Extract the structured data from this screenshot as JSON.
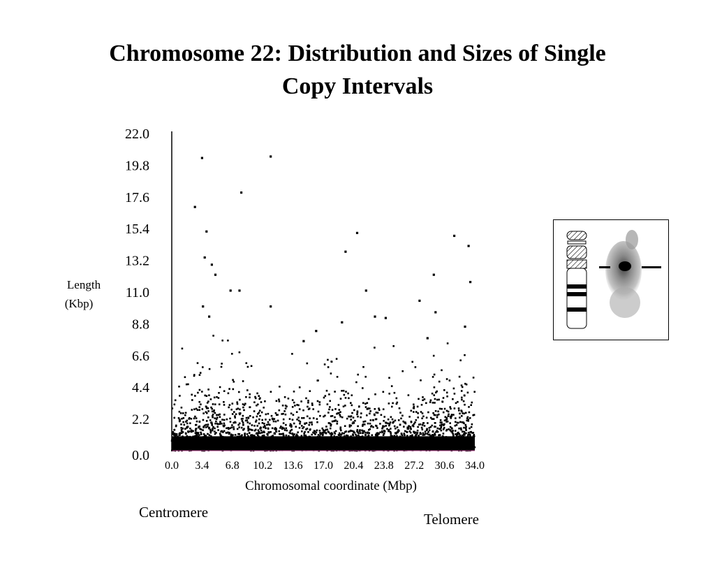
{
  "title": {
    "line1": "Chromosome 22:   Distribution and Sizes of Single",
    "line2": "Copy Intervals"
  },
  "footer": {
    "centromere": "Centromere",
    "telomere": "Telomere"
  },
  "colors": {
    "points": "#000000",
    "axis": "#000000",
    "baseline": "#c0509a"
  },
  "icons": [
    "chromosome-ideogram-icon",
    "fish-hybridization-image"
  ],
  "chart_data": {
    "type": "scatter",
    "xlabel": "Chromosomal coordinate (Mbp)",
    "ylabel_lines": [
      "Length",
      "(Kbp)"
    ],
    "xlim": [
      0,
      34
    ],
    "ylim": [
      0,
      22
    ],
    "x_ticks": [
      "0.0",
      "3.4",
      "6.8",
      "10.2",
      "13.6",
      "17.0",
      "20.4",
      "23.8",
      "27.2",
      "30.6",
      "34.0"
    ],
    "y_ticks": [
      "0.0",
      "2.2",
      "4.4",
      "6.6",
      "8.8",
      "11.0",
      "13.2",
      "15.4",
      "17.6",
      "19.8",
      "22.0"
    ],
    "grid": false,
    "legend": "none",
    "notable_points": [
      {
        "x": 3.4,
        "y": 20.3
      },
      {
        "x": 11.1,
        "y": 20.4
      },
      {
        "x": 7.8,
        "y": 17.9
      },
      {
        "x": 2.6,
        "y": 16.9
      },
      {
        "x": 3.9,
        "y": 15.2
      },
      {
        "x": 20.8,
        "y": 15.1
      },
      {
        "x": 31.7,
        "y": 14.9
      },
      {
        "x": 33.3,
        "y": 14.2
      },
      {
        "x": 19.5,
        "y": 13.8
      },
      {
        "x": 3.7,
        "y": 13.4
      },
      {
        "x": 4.5,
        "y": 12.9
      },
      {
        "x": 4.9,
        "y": 12.2
      },
      {
        "x": 29.4,
        "y": 12.2
      },
      {
        "x": 33.5,
        "y": 11.7
      },
      {
        "x": 6.6,
        "y": 11.1
      },
      {
        "x": 7.6,
        "y": 11.1
      },
      {
        "x": 21.8,
        "y": 11.1
      },
      {
        "x": 27.8,
        "y": 10.4
      },
      {
        "x": 11.1,
        "y": 10.0
      },
      {
        "x": 3.5,
        "y": 10.0
      },
      {
        "x": 4.2,
        "y": 9.3
      },
      {
        "x": 22.8,
        "y": 9.3
      },
      {
        "x": 24.0,
        "y": 9.2
      },
      {
        "x": 29.6,
        "y": 9.6
      },
      {
        "x": 19.1,
        "y": 8.9
      },
      {
        "x": 14.8,
        "y": 7.6
      },
      {
        "x": 16.2,
        "y": 8.3
      },
      {
        "x": 28.7,
        "y": 7.8
      },
      {
        "x": 32.9,
        "y": 8.6
      }
    ],
    "distribution_summary": "dense band of points between 0.0 and about 2.2 Kbp along the whole chromosome, sparser scatter up to about 6.6 Kbp, few outliers above"
  }
}
